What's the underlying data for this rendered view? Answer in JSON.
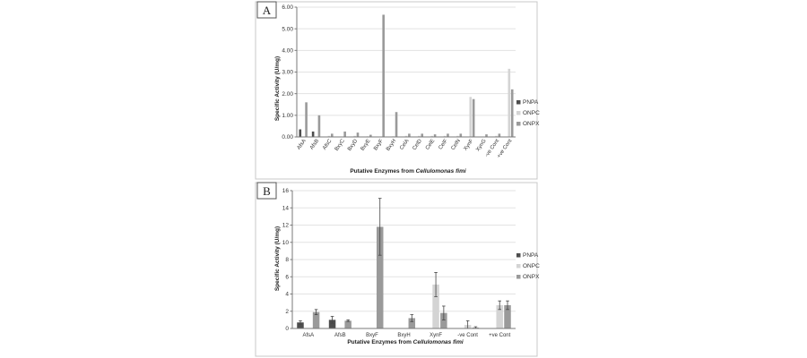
{
  "colors": {
    "PNPA": "#4d4d4d",
    "ONPC": "#d4d4d4",
    "ONPX": "#9a9a9a",
    "axis": "#7a7a7a",
    "grid": "#e3e3e3"
  },
  "chart_data": [
    {
      "panel": "A",
      "type": "bar",
      "xlabel_prefix": "Putative Enzymes from ",
      "xlabel_italic": "Cellulomonas fimi",
      "ylabel": "Specific Activity (U/mg)",
      "ylim": [
        0,
        6
      ],
      "yticks": [
        "0.00",
        "1.00",
        "2.00",
        "3.00",
        "4.00",
        "5.00",
        "6.00"
      ],
      "grid": true,
      "legend_position": "right",
      "categories": [
        "AfsA",
        "AfsB",
        "AfsC",
        "BxyC",
        "BxyD",
        "BxyE",
        "BxyF",
        "BxyH",
        "CelA",
        "CelD",
        "CelE",
        "CelF",
        "CelN",
        "XynF",
        "XynG",
        "-ve Cont",
        "+ve Cont"
      ],
      "series": [
        {
          "name": "PNPA",
          "values": [
            0.35,
            0.25,
            0,
            0,
            0,
            0,
            0,
            0,
            0,
            0,
            0,
            0,
            0,
            0,
            0,
            0,
            0
          ]
        },
        {
          "name": "ONPC",
          "values": [
            0,
            0,
            0.05,
            0.02,
            0.05,
            0.03,
            0,
            0.03,
            0.05,
            0.05,
            0.05,
            0.05,
            0.05,
            1.85,
            0.02,
            0.05,
            3.15
          ]
        },
        {
          "name": "ONPX",
          "values": [
            1.6,
            1.0,
            0.15,
            0.25,
            0.2,
            0.1,
            5.65,
            1.15,
            0.15,
            0.15,
            0.12,
            0.15,
            0.15,
            1.75,
            0.12,
            0.15,
            2.2
          ]
        }
      ]
    },
    {
      "panel": "B",
      "type": "bar",
      "xlabel_prefix": "Putative Enzymes from ",
      "xlabel_italic": "Cellulomonas fimi",
      "ylabel": "Specific Activity (U/mg)",
      "ylim": [
        0,
        16
      ],
      "yticks": [
        "0",
        "2",
        "4",
        "6",
        "8",
        "10",
        "12",
        "14",
        "16"
      ],
      "grid": true,
      "legend_position": "right",
      "categories": [
        "AfsA",
        "AfsB",
        "BxyF",
        "BxyH",
        "XynF",
        "-ve Cont",
        "+ve Cont"
      ],
      "series": [
        {
          "name": "PNPA",
          "values": [
            0.7,
            1.0,
            0,
            0,
            0,
            0,
            0
          ],
          "errors": [
            0.2,
            0.4,
            0,
            0,
            0,
            0,
            0
          ]
        },
        {
          "name": "ONPC",
          "values": [
            0,
            0,
            0,
            0,
            5.1,
            0.4,
            2.7
          ],
          "errors": [
            0,
            0,
            0,
            0,
            1.4,
            0.5,
            0.5
          ]
        },
        {
          "name": "ONPX",
          "values": [
            1.9,
            0.9,
            11.8,
            1.2,
            1.8,
            0.1,
            2.7
          ],
          "errors": [
            0.3,
            0.1,
            3.3,
            0.4,
            0.8,
            0.1,
            0.5
          ]
        }
      ]
    }
  ]
}
